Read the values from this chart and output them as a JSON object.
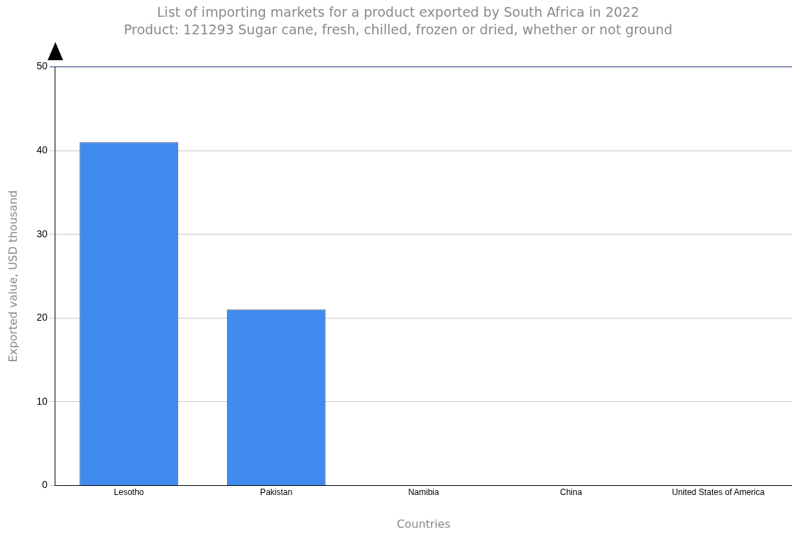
{
  "chart_data": {
    "type": "bar",
    "title": "List of importing markets for a product exported by South Africa in 2022",
    "subtitle": "Product: 121293 Sugar cane, fresh, chilled, frozen or dried, whether or not ground",
    "xlabel": "Countries",
    "ylabel": "Exported value, USD thousand",
    "categories": [
      "Lesotho",
      "Pakistan",
      "Namibia",
      "China",
      "United States of America"
    ],
    "values": [
      41,
      21,
      0,
      0,
      0
    ],
    "color": "#418bef",
    "ylim": [
      0,
      50
    ],
    "yticks": [
      0,
      10,
      20,
      30,
      40,
      50
    ],
    "grid": "y",
    "legend": false
  }
}
